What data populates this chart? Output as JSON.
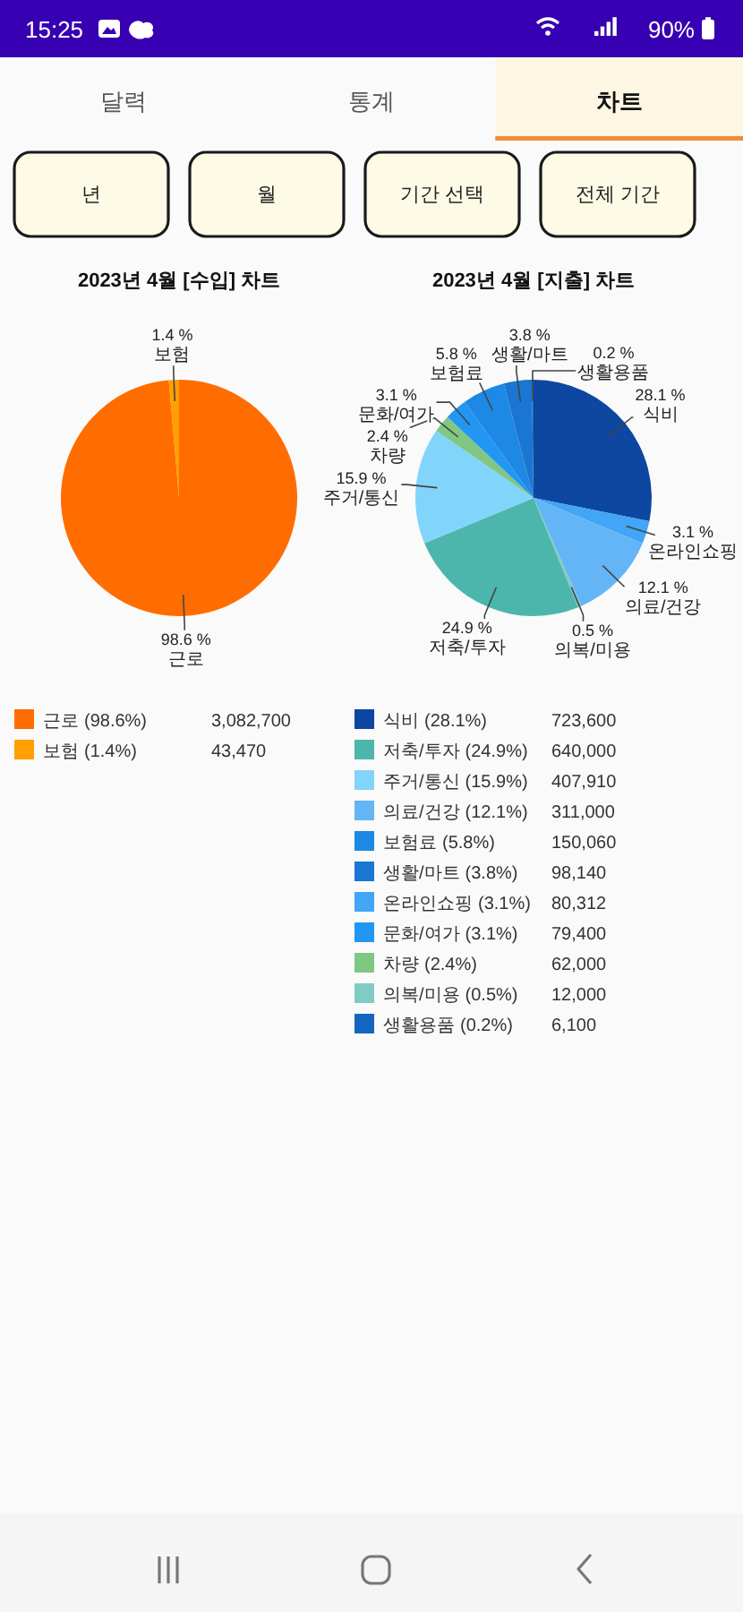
{
  "chart_data": [
    {
      "type": "other",
      "annotations": [
        "15:25",
        "90%",
        "달력",
        "통계",
        "차트",
        "년",
        "월",
        "기간 선택",
        "전체 기간"
      ]
    },
    {
      "type": "pie",
      "title": "2023년 4월 [수입] 차트",
      "categories": [
        "근로",
        "보험"
      ],
      "values": [
        3082700,
        43470
      ],
      "colors": [
        "#ff6d00",
        "#ffa000"
      ],
      "value_labels": [
        "3,082,700",
        "43,470"
      ],
      "annotations": [
        "98.6 %",
        "1.4 %",
        "(98.6%)",
        "(1.4%)"
      ],
      "legend": "bottom"
    },
    {
      "type": "pie",
      "title": "2023년 4월 [지출] 차트",
      "categories": [
        "식비",
        "온라인쇼핑",
        "의료/건강",
        "의복/미용",
        "저축/투자",
        "주거/통신",
        "차량",
        "문화/여가",
        "보험료",
        "생활/마트",
        "생활용품"
      ],
      "values": [
        723600,
        80312,
        311000,
        12000,
        640000,
        407910,
        62000,
        79400,
        150060,
        98140,
        6100
      ],
      "colors": [
        "#0d47a1",
        "#42a5f5",
        "#64b5f6",
        "#80cbc4",
        "#4db6ac",
        "#81d4fa",
        "#81c784",
        "#2196f3",
        "#1e88e5",
        "#1976d2",
        "#1565c0"
      ],
      "value_labels": [
        "723,600",
        "80,312",
        "311,000",
        "12,000",
        "640,000",
        "407,910",
        "62,000",
        "79,400",
        "150,060",
        "98,140",
        "6,100"
      ],
      "annotations": [
        "28.1 %",
        "3.1 %",
        "12.1 %",
        "0.5 %",
        "24.9 %",
        "15.9 %",
        "2.4 %",
        "3.1 %",
        "5.8 %",
        "3.8 %",
        "0.2 %",
        "(28.1%)",
        "(3.1%)",
        "(12.1%)",
        "(0.5%)",
        "(24.9%)",
        "(15.9%)",
        "(2.4%)",
        "(3.1%)",
        "(5.8%)",
        "(3.8%)",
        "(0.2%)"
      ],
      "legend": "bottom"
    }
  ]
}
